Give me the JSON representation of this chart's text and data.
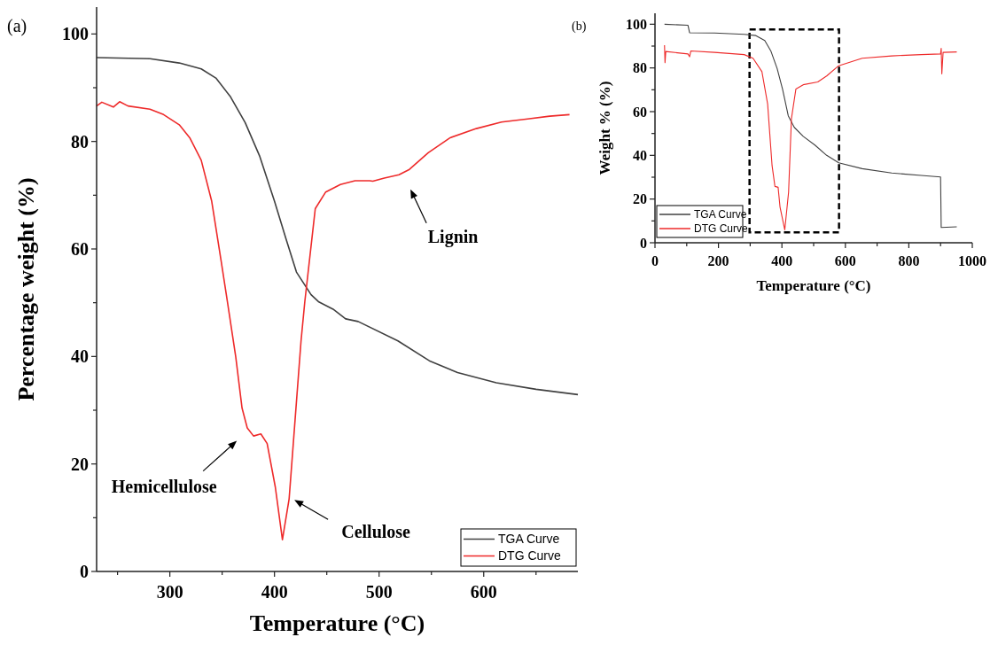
{
  "chart_data": [
    {
      "type": "line",
      "title": "(a)",
      "xlabel": "Temperature (°C)",
      "ylabel": "Percentage weight (%)",
      "xlim": [
        230,
        690
      ],
      "ylim": [
        0,
        105
      ],
      "xticks": [
        {
          "value": 250,
          "label": null
        },
        300,
        {
          "value": 350,
          "label": null
        },
        400,
        {
          "value": 450,
          "label": null
        },
        500,
        {
          "value": 550,
          "label": null
        },
        600,
        {
          "value": 650,
          "label": null
        }
      ],
      "yticks": [
        0,
        {
          "value": 10,
          "label": null
        },
        20,
        {
          "value": 30,
          "label": null
        },
        40,
        {
          "value": 50,
          "label": null
        },
        60,
        {
          "value": 70,
          "label": null
        },
        80,
        {
          "value": 90,
          "label": null
        },
        100
      ],
      "legend": "bottom right",
      "grid": false,
      "series": [
        {
          "name": "TGA Curve",
          "color": "#404040",
          "x": [
            230,
            281,
            309,
            330,
            344,
            358,
            372,
            386,
            400,
            411,
            421,
            435,
            442,
            456,
            468,
            480,
            518,
            548,
            575,
            612,
            650,
            690
          ],
          "values": [
            95.6,
            95.4,
            94.6,
            93.5,
            91.8,
            88.3,
            83.5,
            77.2,
            68.9,
            61.9,
            55.7,
            51.5,
            50.2,
            48.8,
            47,
            46.5,
            42.9,
            39.2,
            37,
            35.1,
            33.9,
            32.9
          ]
        },
        {
          "name": "DTG Curve",
          "color": "#ee2a2a",
          "x": [
            230,
            235,
            246,
            252,
            260,
            281,
            294,
            309,
            319,
            330,
            340,
            349,
            355,
            363,
            369,
            374,
            380,
            387,
            393,
            400.8,
            407.6,
            414,
            419.7,
            425.4,
            429,
            439,
            449,
            463,
            477,
            491,
            494,
            505,
            519,
            529,
            547,
            568,
            593,
            617,
            642,
            663,
            682
          ],
          "values": [
            86.6,
            87.3,
            86.4,
            87.4,
            86.6,
            86,
            85,
            83.1,
            80.7,
            76.5,
            68.9,
            57.8,
            50.2,
            39.9,
            30.4,
            26.7,
            25.2,
            25.6,
            23.8,
            15.7,
            5.9,
            13.5,
            28.2,
            42.9,
            50.2,
            67.5,
            70.6,
            72,
            72.7,
            72.7,
            72.6,
            73.2,
            73.8,
            74.8,
            77.9,
            80.7,
            82.4,
            83.6,
            84.2,
            84.7,
            85
          ]
        }
      ],
      "annotations": [
        "Lignin",
        "Hemicellulose",
        "Cellulose"
      ]
    },
    {
      "type": "line",
      "title": "(b)",
      "xlabel": "Temperature (°C)",
      "ylabel": "Weight % (%)",
      "xlim": [
        0,
        1000
      ],
      "ylim": [
        0,
        105
      ],
      "xticks": [
        0,
        {
          "value": 100,
          "label": null
        },
        200,
        {
          "value": 300,
          "label": null
        },
        400,
        {
          "value": 500,
          "label": null
        },
        600,
        {
          "value": 700,
          "label": null
        },
        800,
        {
          "value": 900,
          "label": null
        },
        1000
      ],
      "yticks": [
        0,
        {
          "value": 10,
          "label": null
        },
        20,
        {
          "value": 30,
          "label": null
        },
        40,
        {
          "value": 50,
          "label": null
        },
        60,
        {
          "value": 70,
          "label": null
        },
        80,
        {
          "value": 90,
          "label": null
        },
        100
      ],
      "legend": "bottom left",
      "grid": false,
      "series": [
        {
          "name": "TGA Curve",
          "color": "#404040",
          "x": [
            30,
            104,
            109,
            188,
            281,
            318,
            346,
            365,
            385,
            402,
            420,
            439,
            467,
            504,
            541,
            579,
            653,
            746,
            839,
            900,
            902,
            951
          ],
          "values": [
            100,
            99.5,
            96.1,
            96,
            95.4,
            94.8,
            92.5,
            87.8,
            79.7,
            70.3,
            58.1,
            52.8,
            48.7,
            44.7,
            40,
            36.6,
            33.9,
            31.9,
            30.8,
            30.1,
            7,
            7.3
          ]
        },
        {
          "name": "DTG Curve",
          "color": "#ee2a2a",
          "x": [
            30,
            31.6,
            34,
            104,
            109,
            113,
            188,
            281,
            309,
            337,
            355,
            369,
            378,
            388,
            394,
            409,
            421,
            430,
            444,
            467,
            513,
            541,
            579,
            653,
            746,
            839,
            900,
            902,
            904,
            908,
            951
          ],
          "values": [
            90.4,
            82.4,
            87.5,
            86.4,
            85.1,
            87.8,
            87.1,
            86.1,
            84.4,
            78.3,
            63.5,
            35.3,
            25.8,
            25.4,
            16.4,
            5.9,
            23.1,
            56.8,
            70.3,
            72.3,
            73.6,
            76.3,
            81,
            84.4,
            85.5,
            86.1,
            86.4,
            89,
            77.3,
            87.1,
            87.3
          ]
        }
      ]
    }
  ]
}
